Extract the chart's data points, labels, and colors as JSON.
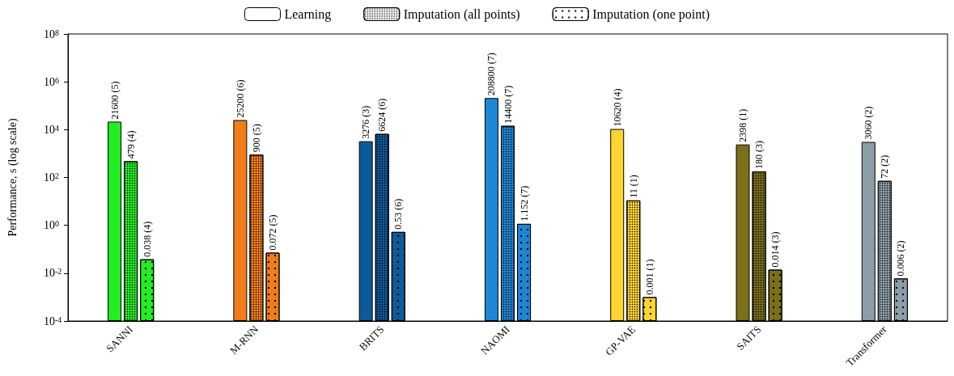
{
  "chart_data": {
    "type": "bar",
    "ylabel": "Performance, s (log scale)",
    "log": "y",
    "legend": "top",
    "grid": false,
    "categories": [
      "SANNI",
      "M-RNN",
      "BRITS",
      "NAOMI",
      "GP-VAE",
      "SAITS",
      "Transformer"
    ],
    "ylim": [
      0.0001,
      100000000
    ],
    "yticks": [
      {
        "value": 0.0001,
        "label": "10$^{-4}$"
      },
      {
        "value": 0.01,
        "label": "10$^{-2}$"
      },
      {
        "value": 1,
        "label": "10$^{0}$"
      },
      {
        "value": 100,
        "label": "10$^{2}$"
      },
      {
        "value": 10000,
        "label": "10$^{4}$"
      },
      {
        "value": 1000000,
        "label": "10$^{6}$"
      },
      {
        "value": 100000000,
        "label": "10$^{8}$"
      }
    ],
    "series": [
      {
        "name": "Learning",
        "color": "#ffffff",
        "colors": [
          "#22ee22",
          "#f07d1a",
          "#0d5a9b",
          "#1f86d6",
          "#fdd52e",
          "#7b6f1a",
          "#8c9ea8"
        ],
        "values": [
          21600,
          25200,
          3276,
          208800,
          10620,
          2398,
          3060
        ],
        "value_labels": [
          "21600 (5)",
          "25200 (6)",
          "3276 (3)",
          "208800 (7)",
          "10620 (4)",
          "2398 (1)",
          "3060 (2)"
        ]
      },
      {
        "name": "Imputation (all points)",
        "color": "#ffffff",
        "colors": [
          "#22ee22",
          "#f07d1a",
          "#0d5a9b",
          "#1f86d6",
          "#fdd52e",
          "#7b6f1a",
          "#8c9ea8"
        ],
        "values": [
          479,
          900,
          6624,
          14400,
          11,
          180,
          72
        ],
        "value_labels": [
          "479 (4)",
          "900 (5)",
          "6624 (6)",
          "14400 (7)",
          "11 (1)",
          "180 (3)",
          "72 (2)"
        ]
      },
      {
        "name": "Imputation (one point)",
        "color": "#ffffff",
        "colors": [
          "#22ee22",
          "#f07d1a",
          "#0d5a9b",
          "#1f86d6",
          "#fdd52e",
          "#7b6f1a",
          "#8c9ea8"
        ],
        "values": [
          0.038,
          0.072,
          0.53,
          1.152,
          0.001,
          0.014,
          0.006
        ],
        "value_labels": [
          "0.038 (4)",
          "0.072 (5)",
          "0.53 (6)",
          "1.152 (7)",
          "0.001 (1)",
          "0.014 (3)",
          "0.006 (2)"
        ]
      }
    ]
  }
}
